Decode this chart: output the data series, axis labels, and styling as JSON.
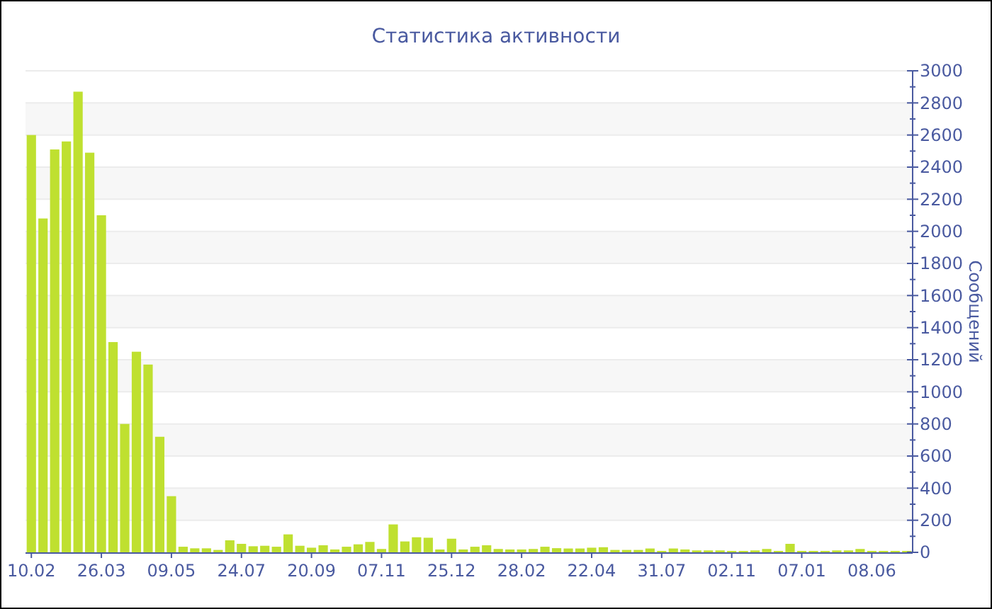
{
  "chart_data": {
    "type": "bar",
    "title": "Статистика активности",
    "ylabel": "Сообщений",
    "categories": [
      "10.02",
      null,
      null,
      null,
      null,
      null,
      "26.03",
      null,
      null,
      null,
      null,
      null,
      "09.05",
      null,
      null,
      null,
      null,
      null,
      "24.07",
      null,
      null,
      null,
      null,
      null,
      "20.09",
      null,
      null,
      null,
      null,
      null,
      "07.11",
      null,
      null,
      null,
      null,
      null,
      "25.12",
      null,
      null,
      null,
      null,
      null,
      "28.02",
      null,
      null,
      null,
      null,
      null,
      "22.04",
      null,
      null,
      null,
      null,
      null,
      "31.07",
      null,
      null,
      null,
      null,
      null,
      "02.11",
      null,
      null,
      null,
      null,
      null,
      "07.01",
      null,
      null,
      null,
      null,
      null,
      "08.06",
      null,
      null,
      null
    ],
    "values": [
      2600,
      2080,
      2510,
      2560,
      2870,
      2490,
      2100,
      1310,
      800,
      1250,
      1170,
      720,
      350,
      35,
      25,
      25,
      15,
      75,
      53,
      38,
      41,
      35,
      112,
      41,
      29,
      44,
      18,
      35,
      50,
      65,
      21,
      174,
      68,
      94,
      91,
      18,
      85,
      18,
      35,
      44,
      21,
      18,
      18,
      21,
      35,
      26,
      24,
      24,
      29,
      32,
      15,
      15,
      15,
      24,
      9,
      24,
      18,
      12,
      12,
      12,
      9,
      9,
      12,
      21,
      9,
      53,
      9,
      9,
      9,
      12,
      12,
      21,
      9,
      9,
      9,
      9
    ],
    "color": "#bfe030",
    "ylim": [
      0,
      3000
    ],
    "yticks": [
      0,
      200,
      400,
      600,
      800,
      1000,
      1200,
      1400,
      1600,
      1800,
      2000,
      2200,
      2400,
      2600,
      2800,
      3000
    ],
    "grid": "y"
  }
}
